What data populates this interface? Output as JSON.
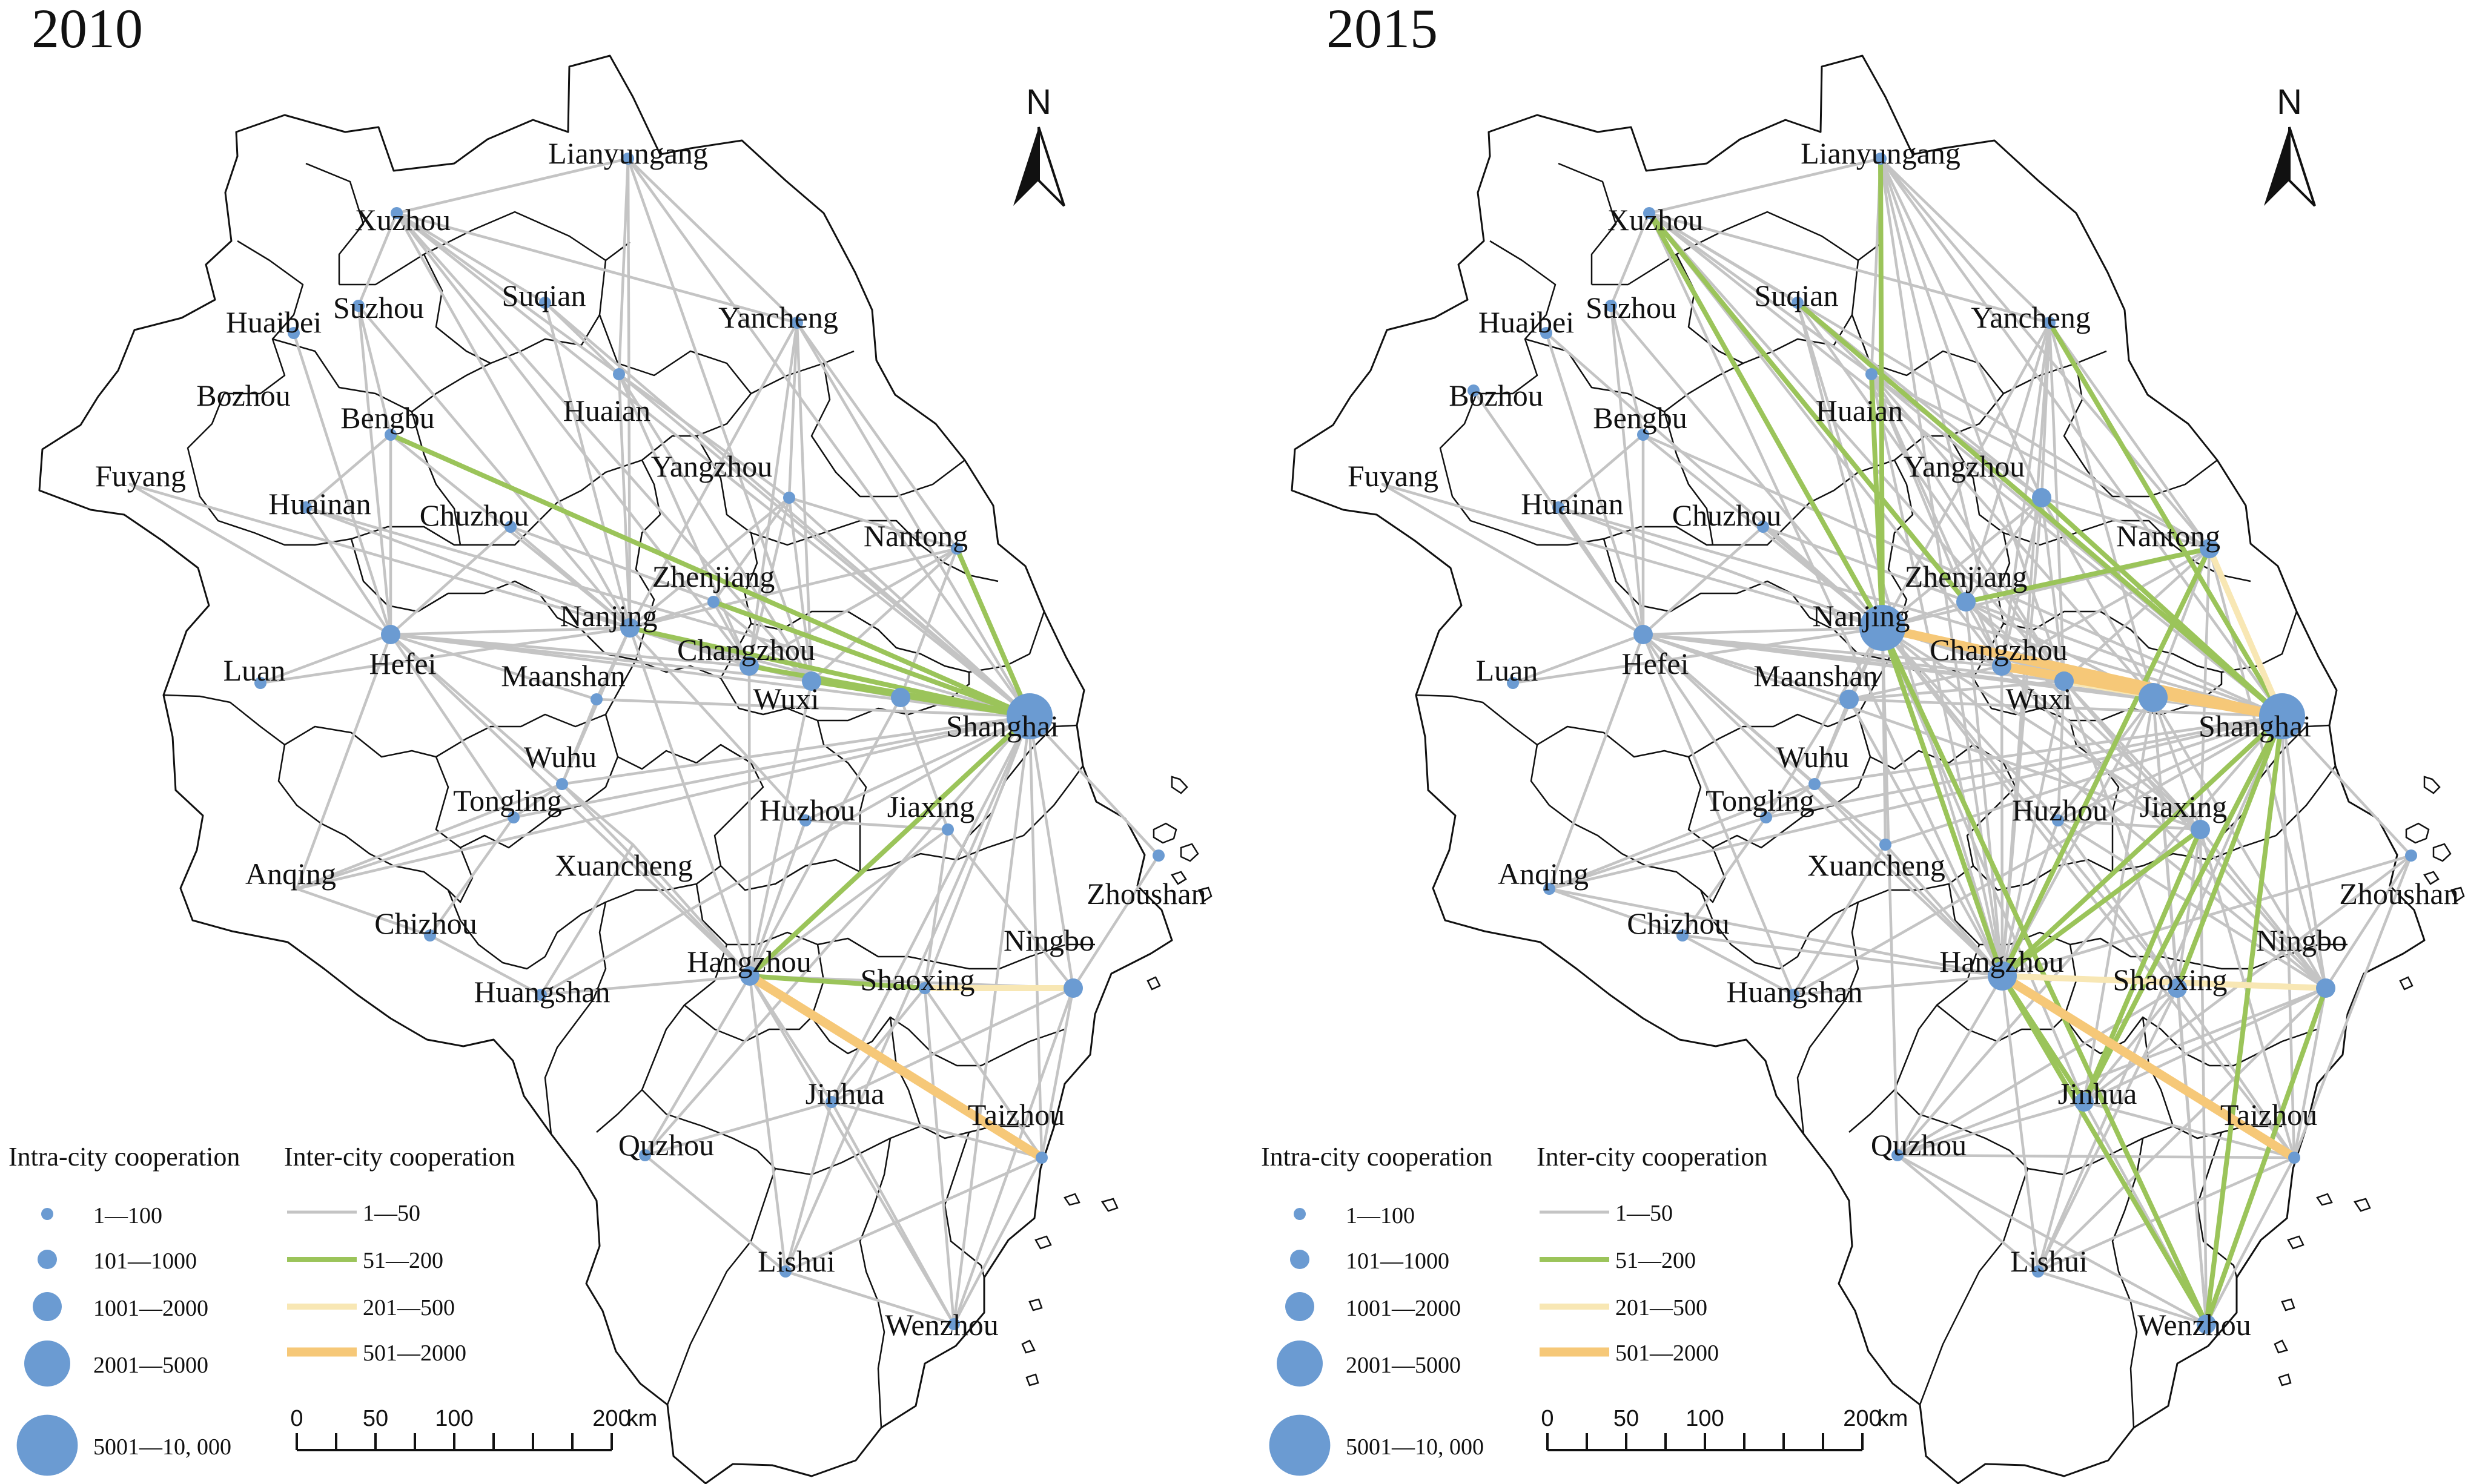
{
  "figure": {
    "panels": [
      {
        "year": "2010",
        "nodes": [
          {
            "name": "Lianyungang",
            "size": 1
          },
          {
            "name": "Xuzhou",
            "size": 1
          },
          {
            "name": "Suqian",
            "size": 1
          },
          {
            "name": "Yancheng",
            "size": 1
          },
          {
            "name": "Huaibei",
            "size": 1
          },
          {
            "name": "Suzhou",
            "size": 1
          },
          {
            "name": "Bozhou",
            "size": 0
          },
          {
            "name": "Bengbu",
            "size": 1
          },
          {
            "name": "Huaian",
            "size": 1
          },
          {
            "name": "Fuyang",
            "size": 0
          },
          {
            "name": "Huainan",
            "size": 1
          },
          {
            "name": "Chuzhou",
            "size": 1
          },
          {
            "name": "Yangzhou",
            "size": 1
          },
          {
            "name": "Nantong",
            "size": 1
          },
          {
            "name": "Zhenjiang",
            "size": 1
          },
          {
            "name": "Nanjing",
            "size": 2
          },
          {
            "name": "Hefei",
            "size": 2
          },
          {
            "name": "Changzhou",
            "size": 2
          },
          {
            "name": "Luan",
            "size": 1
          },
          {
            "name": "Maanshan",
            "size": 1
          },
          {
            "name": "Wuxi",
            "size": 2
          },
          {
            "name": "Shanghai",
            "size": 4
          },
          {
            "name": "Wuhu",
            "size": 1
          },
          {
            "name": "Tongling",
            "size": 1
          },
          {
            "name": "Huzhou",
            "size": 1
          },
          {
            "name": "Jiaxing",
            "size": 1
          },
          {
            "name": "Anqing",
            "size": 0
          },
          {
            "name": "Xuancheng",
            "size": 0
          },
          {
            "name": "Zhoushan",
            "size": 1
          },
          {
            "name": "Chizhou",
            "size": 1
          },
          {
            "name": "Ningbo",
            "size": 2
          },
          {
            "name": "Hangzhou",
            "size": 2
          },
          {
            "name": "Shaoxing",
            "size": 1
          },
          {
            "name": "Huangshan",
            "size": 1
          },
          {
            "name": "Jinhua",
            "size": 1
          },
          {
            "name": "Taizhou",
            "size": 1
          },
          {
            "name": "Quzhou",
            "size": 1
          },
          {
            "name": "Lishui",
            "size": 1
          },
          {
            "name": "Wenzhou",
            "size": 1
          }
        ],
        "strong_links": [
          {
            "from": "Bengbu",
            "to": "Shanghai",
            "class": 2
          },
          {
            "from": "Nanjing",
            "to": "Shanghai",
            "class": 2
          },
          {
            "from": "Changzhou",
            "to": "Shanghai",
            "class": 2
          },
          {
            "from": "Wuxi",
            "to": "Shanghai",
            "class": 2
          },
          {
            "from": "Zhenjiang",
            "to": "Shanghai",
            "class": 2
          },
          {
            "from": "Nantong",
            "to": "Shanghai",
            "class": 2
          },
          {
            "from": "Hangzhou",
            "to": "Shanghai",
            "class": 2
          },
          {
            "from": "Hangzhou",
            "to": "Shaoxing",
            "class": 2
          },
          {
            "from": "Shaoxing",
            "to": "Ningbo",
            "class": 3
          },
          {
            "from": "Hangzhou",
            "to": "Taizhou",
            "class": 4
          }
        ]
      },
      {
        "year": "2015",
        "nodes": [
          {
            "name": "Lianyungang",
            "size": 1
          },
          {
            "name": "Xuzhou",
            "size": 1
          },
          {
            "name": "Suqian",
            "size": 1
          },
          {
            "name": "Yancheng",
            "size": 1
          },
          {
            "name": "Huaibei",
            "size": 1
          },
          {
            "name": "Suzhou",
            "size": 1
          },
          {
            "name": "Bozhou",
            "size": 1
          },
          {
            "name": "Bengbu",
            "size": 1
          },
          {
            "name": "Huaian",
            "size": 1
          },
          {
            "name": "Fuyang",
            "size": 0
          },
          {
            "name": "Huainan",
            "size": 1
          },
          {
            "name": "Chuzhou",
            "size": 1
          },
          {
            "name": "Yangzhou",
            "size": 2
          },
          {
            "name": "Nantong",
            "size": 2
          },
          {
            "name": "Zhenjiang",
            "size": 2
          },
          {
            "name": "Nanjing",
            "size": 4
          },
          {
            "name": "Hefei",
            "size": 2
          },
          {
            "name": "Changzhou",
            "size": 2
          },
          {
            "name": "Luan",
            "size": 1
          },
          {
            "name": "Maanshan",
            "size": 2
          },
          {
            "name": "Wuxi",
            "size": 2
          },
          {
            "name": "Shanghai",
            "size": 4
          },
          {
            "name": "Wuhu",
            "size": 1
          },
          {
            "name": "Tongling",
            "size": 1
          },
          {
            "name": "Huzhou",
            "size": 1
          },
          {
            "name": "Jiaxing",
            "size": 2
          },
          {
            "name": "Anqing",
            "size": 1
          },
          {
            "name": "Xuancheng",
            "size": 1
          },
          {
            "name": "Zhoushan",
            "size": 1
          },
          {
            "name": "Chizhou",
            "size": 1
          },
          {
            "name": "Ningbo",
            "size": 2
          },
          {
            "name": "Hangzhou",
            "size": 3
          },
          {
            "name": "Shaoxing",
            "size": 2
          },
          {
            "name": "Huangshan",
            "size": 1
          },
          {
            "name": "Jinhua",
            "size": 2
          },
          {
            "name": "Taizhou",
            "size": 1
          },
          {
            "name": "Quzhou",
            "size": 1
          },
          {
            "name": "Lishui",
            "size": 1
          },
          {
            "name": "Wenzhou",
            "size": 2
          }
        ],
        "strong_links": [
          {
            "from": "Nanjing",
            "to": "Shanghai",
            "class": 4
          },
          {
            "from": "Changzhou",
            "to": "Shanghai",
            "class": 4
          },
          {
            "from": "Wuxi",
            "to": "Shanghai",
            "class": 3
          },
          {
            "from": "Hangzhou",
            "to": "Taizhou",
            "class": 4
          },
          {
            "from": "Hangzhou",
            "to": "Ningbo",
            "class": 3
          },
          {
            "from": "Nantong",
            "to": "Shanghai",
            "class": 3
          },
          {
            "from": "Nanjing",
            "to": "Hangzhou",
            "class": 2
          },
          {
            "from": "Lianyungang",
            "to": "Nanjing",
            "class": 2
          },
          {
            "from": "Xuzhou",
            "to": "Nanjing",
            "class": 2
          },
          {
            "from": "Xuzhou",
            "to": "Zhenjiang",
            "class": 2
          },
          {
            "from": "Yancheng",
            "to": "Shanghai",
            "class": 2
          },
          {
            "from": "Huaian",
            "to": "Nanjing",
            "class": 2
          },
          {
            "from": "Yangzhou",
            "to": "Shanghai",
            "class": 2
          },
          {
            "from": "Hangzhou",
            "to": "Shanghai",
            "class": 2
          },
          {
            "from": "Hangzhou",
            "to": "Jiaxing",
            "class": 2
          },
          {
            "from": "Hangzhou",
            "to": "Wenzhou",
            "class": 2
          },
          {
            "from": "Hangzhou",
            "to": "Jinhua",
            "class": 2
          },
          {
            "from": "Hangzhou",
            "to": "Nantong",
            "class": 2
          },
          {
            "from": "Jinhua",
            "to": "Shanghai",
            "class": 2
          },
          {
            "from": "Wenzhou",
            "to": "Shanghai",
            "class": 2
          },
          {
            "from": "Ningbo",
            "to": "Wenzhou",
            "class": 2
          },
          {
            "from": "Shaoxing",
            "to": "Shanghai",
            "class": 2
          },
          {
            "from": "Nanjing",
            "to": "Wenzhou",
            "class": 2
          },
          {
            "from": "Zhenjiang",
            "to": "Nantong",
            "class": 2
          },
          {
            "from": "Suqian",
            "to": "Shanghai",
            "class": 2
          },
          {
            "from": "Jinhua",
            "to": "Jiaxing",
            "class": 2
          }
        ]
      }
    ],
    "legend": {
      "intra_title": "Intra-city cooperation",
      "inter_title": "Inter-city cooperation",
      "intra_classes": [
        "1—100",
        "101—1000",
        "1001—2000",
        "2001—5000",
        "5001—10, 000"
      ],
      "inter_classes": [
        "1—50",
        "51—200",
        "201—500",
        "501—2000"
      ]
    },
    "scale_bar": {
      "ticks": [
        "0",
        "50",
        "100",
        "200"
      ],
      "unit": "km"
    },
    "north_label": "N",
    "colors": {
      "node": "#6b9bd2",
      "link_1": "#c4c4c4",
      "link_2": "#9bc45a",
      "link_3": "#f8e7b4",
      "link_4": "#f6c878",
      "boundary": "#111111"
    }
  }
}
